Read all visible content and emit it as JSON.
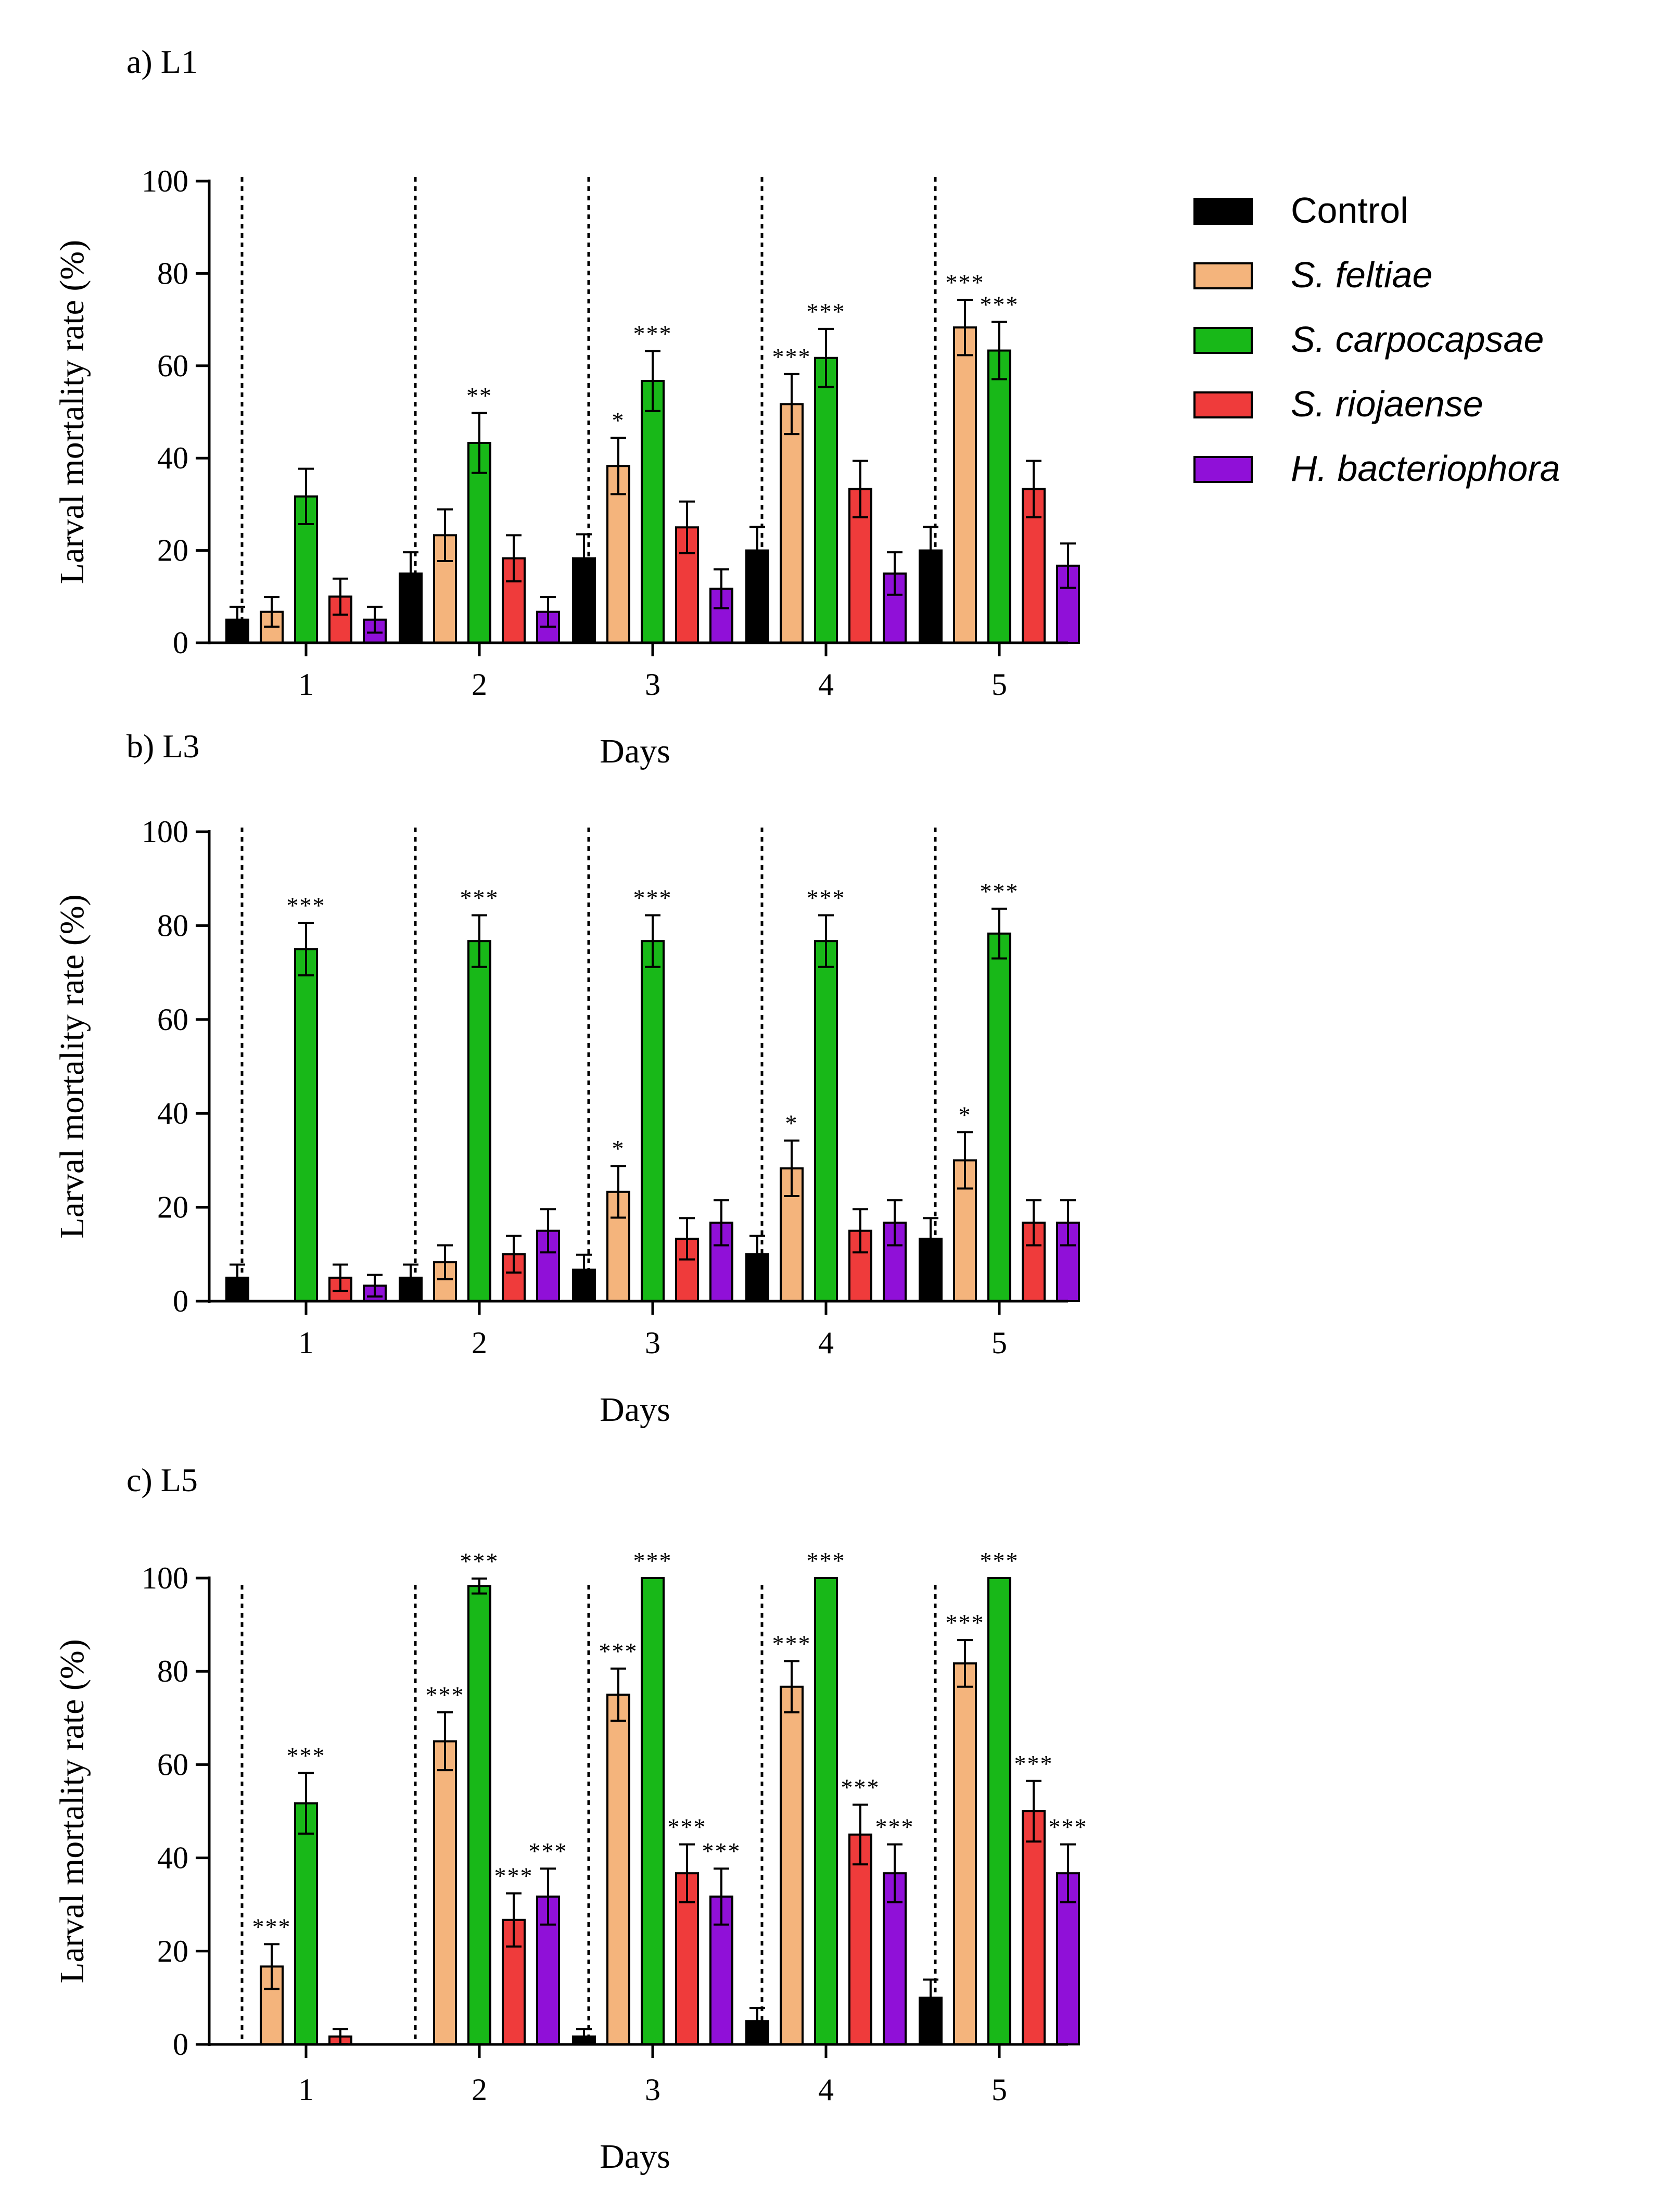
{
  "chart_data": [
    {
      "type": "bar",
      "panel_label": "a) L1",
      "xlabel": "Days",
      "ylabel": "Larval mortality rate (%)",
      "ylim": [
        0,
        100
      ],
      "yticks": [
        "0",
        "20",
        "40",
        "60",
        "80",
        "100"
      ],
      "categories": [
        "1",
        "2",
        "3",
        "4",
        "5"
      ],
      "series": [
        {
          "name": "Control",
          "values": [
            5,
            15,
            18.3,
            20,
            20
          ],
          "errors": [
            2.8,
            4.6,
            5.2,
            5.1,
            5.1
          ],
          "stars": [
            "",
            "",
            "",
            "",
            ""
          ]
        },
        {
          "name": "S. feltiae",
          "values": [
            6.7,
            23.3,
            38.3,
            51.7,
            68.3
          ],
          "errors": [
            3.2,
            5.6,
            6.1,
            6.5,
            6
          ],
          "stars": [
            "",
            "",
            "*",
            "***",
            "***"
          ]
        },
        {
          "name": "S. carpocapsae",
          "values": [
            31.7,
            43.3,
            56.7,
            61.7,
            63.3
          ],
          "errors": [
            6,
            6.5,
            6.5,
            6.3,
            6.2
          ],
          "stars": [
            "",
            "**",
            "***",
            "***",
            "***"
          ]
        },
        {
          "name": "S. riojaense",
          "values": [
            10,
            18.3,
            25,
            33.3,
            33.3
          ],
          "errors": [
            3.9,
            5,
            5.6,
            6.1,
            6.1
          ],
          "stars": [
            "",
            "",
            "",
            "",
            ""
          ]
        },
        {
          "name": "H. bacteriophora",
          "values": [
            5,
            6.7,
            11.7,
            15,
            16.7
          ],
          "errors": [
            2.8,
            3.2,
            4.2,
            4.6,
            4.8
          ],
          "stars": [
            "",
            "",
            "",
            "",
            ""
          ]
        }
      ]
    },
    {
      "type": "bar",
      "panel_label": "b) L3",
      "xlabel": "Days",
      "ylabel": "Larval mortality rate (%)",
      "ylim": [
        0,
        100
      ],
      "yticks": [
        "0",
        "20",
        "40",
        "60",
        "80",
        "100"
      ],
      "categories": [
        "1",
        "2",
        "3",
        "4",
        "5"
      ],
      "series": [
        {
          "name": "Control",
          "values": [
            5,
            5,
            6.7,
            10,
            13.3
          ],
          "errors": [
            2.8,
            2.8,
            3.2,
            3.9,
            4.4
          ],
          "stars": [
            "",
            "",
            "",
            "",
            ""
          ]
        },
        {
          "name": "S. feltiae",
          "values": [
            0,
            8.3,
            23.3,
            28.3,
            30
          ],
          "errors": [
            0,
            3.6,
            5.5,
            5.9,
            6
          ],
          "stars": [
            "",
            "",
            "*",
            "*",
            "*"
          ]
        },
        {
          "name": "S. carpocapsae",
          "values": [
            75,
            76.7,
            76.7,
            76.7,
            78.3
          ],
          "errors": [
            5.6,
            5.5,
            5.5,
            5.5,
            5.3
          ],
          "stars": [
            "***",
            "***",
            "***",
            "***",
            "***"
          ]
        },
        {
          "name": "S. riojaense",
          "values": [
            5,
            10,
            13.3,
            15,
            16.7
          ],
          "errors": [
            2.8,
            3.9,
            4.4,
            4.6,
            4.8
          ],
          "stars": [
            "",
            "",
            "",
            "",
            ""
          ]
        },
        {
          "name": "H. bacteriophora",
          "values": [
            3.3,
            15,
            16.7,
            16.7,
            16.7
          ],
          "errors": [
            2.3,
            4.6,
            4.8,
            4.8,
            4.8
          ],
          "stars": [
            "",
            "",
            "",
            "",
            ""
          ]
        }
      ]
    },
    {
      "type": "bar",
      "panel_label": "c) L5",
      "xlabel": "Days",
      "ylabel": "Larval mortality rate (%)",
      "ylim": [
        0,
        100
      ],
      "yticks": [
        "0",
        "20",
        "40",
        "60",
        "80",
        "100"
      ],
      "categories": [
        "1",
        "2",
        "3",
        "4",
        "5"
      ],
      "series": [
        {
          "name": "Control",
          "values": [
            0,
            0,
            1.7,
            5,
            10
          ],
          "errors": [
            0,
            0,
            1.6,
            2.8,
            3.9
          ],
          "stars": [
            "",
            "",
            "",
            "",
            ""
          ]
        },
        {
          "name": "S. feltiae",
          "values": [
            16.7,
            65,
            75,
            76.7,
            81.7
          ],
          "errors": [
            4.8,
            6.2,
            5.6,
            5.5,
            5
          ],
          "stars": [
            "***",
            "***",
            "***",
            "***",
            "***"
          ]
        },
        {
          "name": "S. carpocapsae",
          "values": [
            51.7,
            98.3,
            100,
            100,
            100
          ],
          "errors": [
            6.5,
            1.6,
            0,
            0,
            0
          ],
          "stars": [
            "***",
            "***",
            "***",
            "***",
            "***"
          ]
        },
        {
          "name": "S. riojaense",
          "values": [
            1.7,
            26.7,
            36.7,
            45,
            50
          ],
          "errors": [
            1.6,
            5.7,
            6.2,
            6.4,
            6.5
          ],
          "stars": [
            "",
            "***",
            "***",
            "***",
            "***"
          ]
        },
        {
          "name": "H. bacteriophora",
          "values": [
            0,
            31.7,
            31.7,
            36.7,
            36.7
          ],
          "errors": [
            0,
            6,
            6,
            6.2,
            6.2
          ],
          "stars": [
            "",
            "***",
            "***",
            "***",
            "***"
          ]
        }
      ]
    }
  ],
  "legend": {
    "entries": [
      {
        "name": "Control",
        "color": "#000000",
        "italic": false
      },
      {
        "name": "S. feltiae",
        "color": "#F4B47C",
        "italic": true
      },
      {
        "name": "S. carpocapsae",
        "color": "#18B818",
        "italic": true
      },
      {
        "name": "S. riojaense",
        "color": "#EF3B3B",
        "italic": true
      },
      {
        "name": "H. bacteriophora",
        "color": "#9010D8",
        "italic": true
      }
    ]
  }
}
